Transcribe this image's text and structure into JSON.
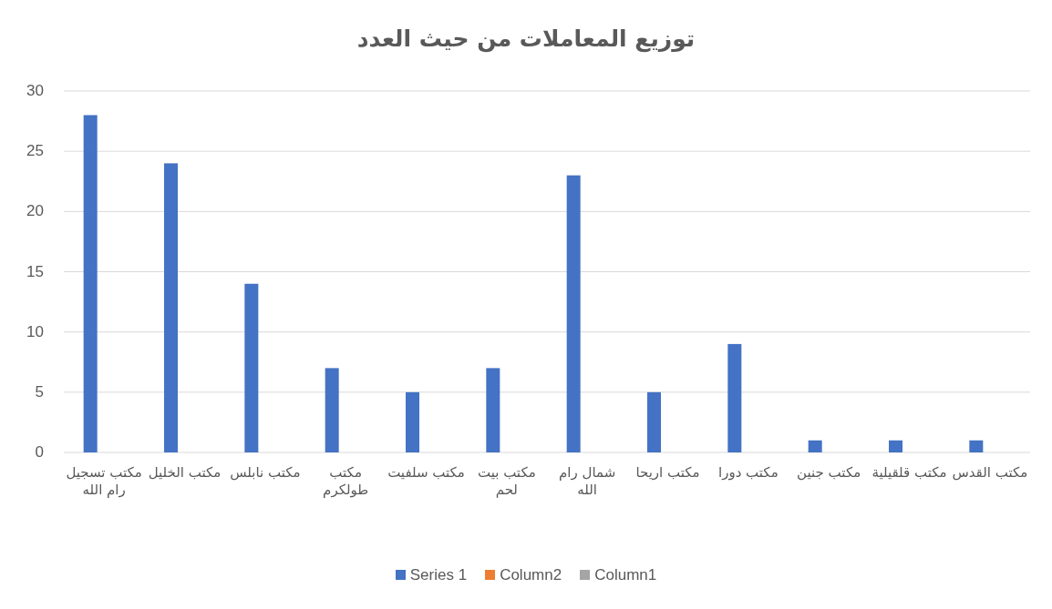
{
  "chart_data": {
    "type": "bar",
    "title": "توزيع المعاملات من حيث العدد",
    "categories": [
      "مكتب تسجيل رام الله",
      "مكتب الخليل",
      "مكتب نابلس",
      "مكتب طولكرم",
      "مكتب سلفيت",
      "مكتب بيت لحم",
      "شمال رام الله",
      "مكتب اريحا",
      "مكتب دورا",
      "مكتب جنين",
      "مكتب قلقيلية",
      "مكتب القدس"
    ],
    "series": [
      {
        "name": "Series 1",
        "color": "#4472c4",
        "values": [
          28,
          24,
          14,
          7,
          5,
          7,
          23,
          5,
          9,
          1,
          1,
          1
        ]
      },
      {
        "name": "Column2",
        "color": "#ed7d31",
        "values": [
          null,
          null,
          null,
          null,
          null,
          null,
          null,
          null,
          null,
          null,
          null,
          null
        ]
      },
      {
        "name": "Column1",
        "color": "#a5a5a5",
        "values": [
          null,
          null,
          null,
          null,
          null,
          null,
          null,
          null,
          null,
          null,
          null,
          null
        ]
      }
    ],
    "ylim": [
      0,
      30
    ],
    "yticks": [
      0,
      5,
      10,
      15,
      20,
      25,
      30
    ],
    "grid": "y",
    "legend": "bottom"
  }
}
